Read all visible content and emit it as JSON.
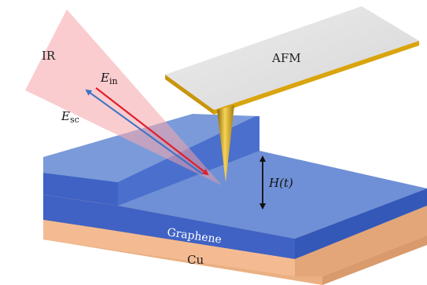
{
  "labels": {
    "ir": "IR",
    "afm": "AFM",
    "e_in": {
      "base": "E",
      "sub": "in"
    },
    "e_sc": {
      "base": "E",
      "sub": "sc"
    },
    "height": "H(t)",
    "graphene": "Graphene",
    "copper": "Cu"
  },
  "colors": {
    "ir_cone": "#f8b4b8",
    "graphene_top": "#6f90d6",
    "graphene_side": "#3f62c4",
    "copper_top": "#f6c39b",
    "copper_side": "#eab083",
    "afm_top": "#e3e3e3",
    "afm_edge": "#c89a08",
    "tip": "#d4a312",
    "incident_arrow": "#e01e2a",
    "scattered_arrow": "#3a72c4",
    "height_arrow": "#111111"
  },
  "icons": {
    "incident_arrow": "red-arrow-icon",
    "scattered_arrow": "blue-arrow-icon",
    "height_arrow": "double-arrow-icon"
  }
}
